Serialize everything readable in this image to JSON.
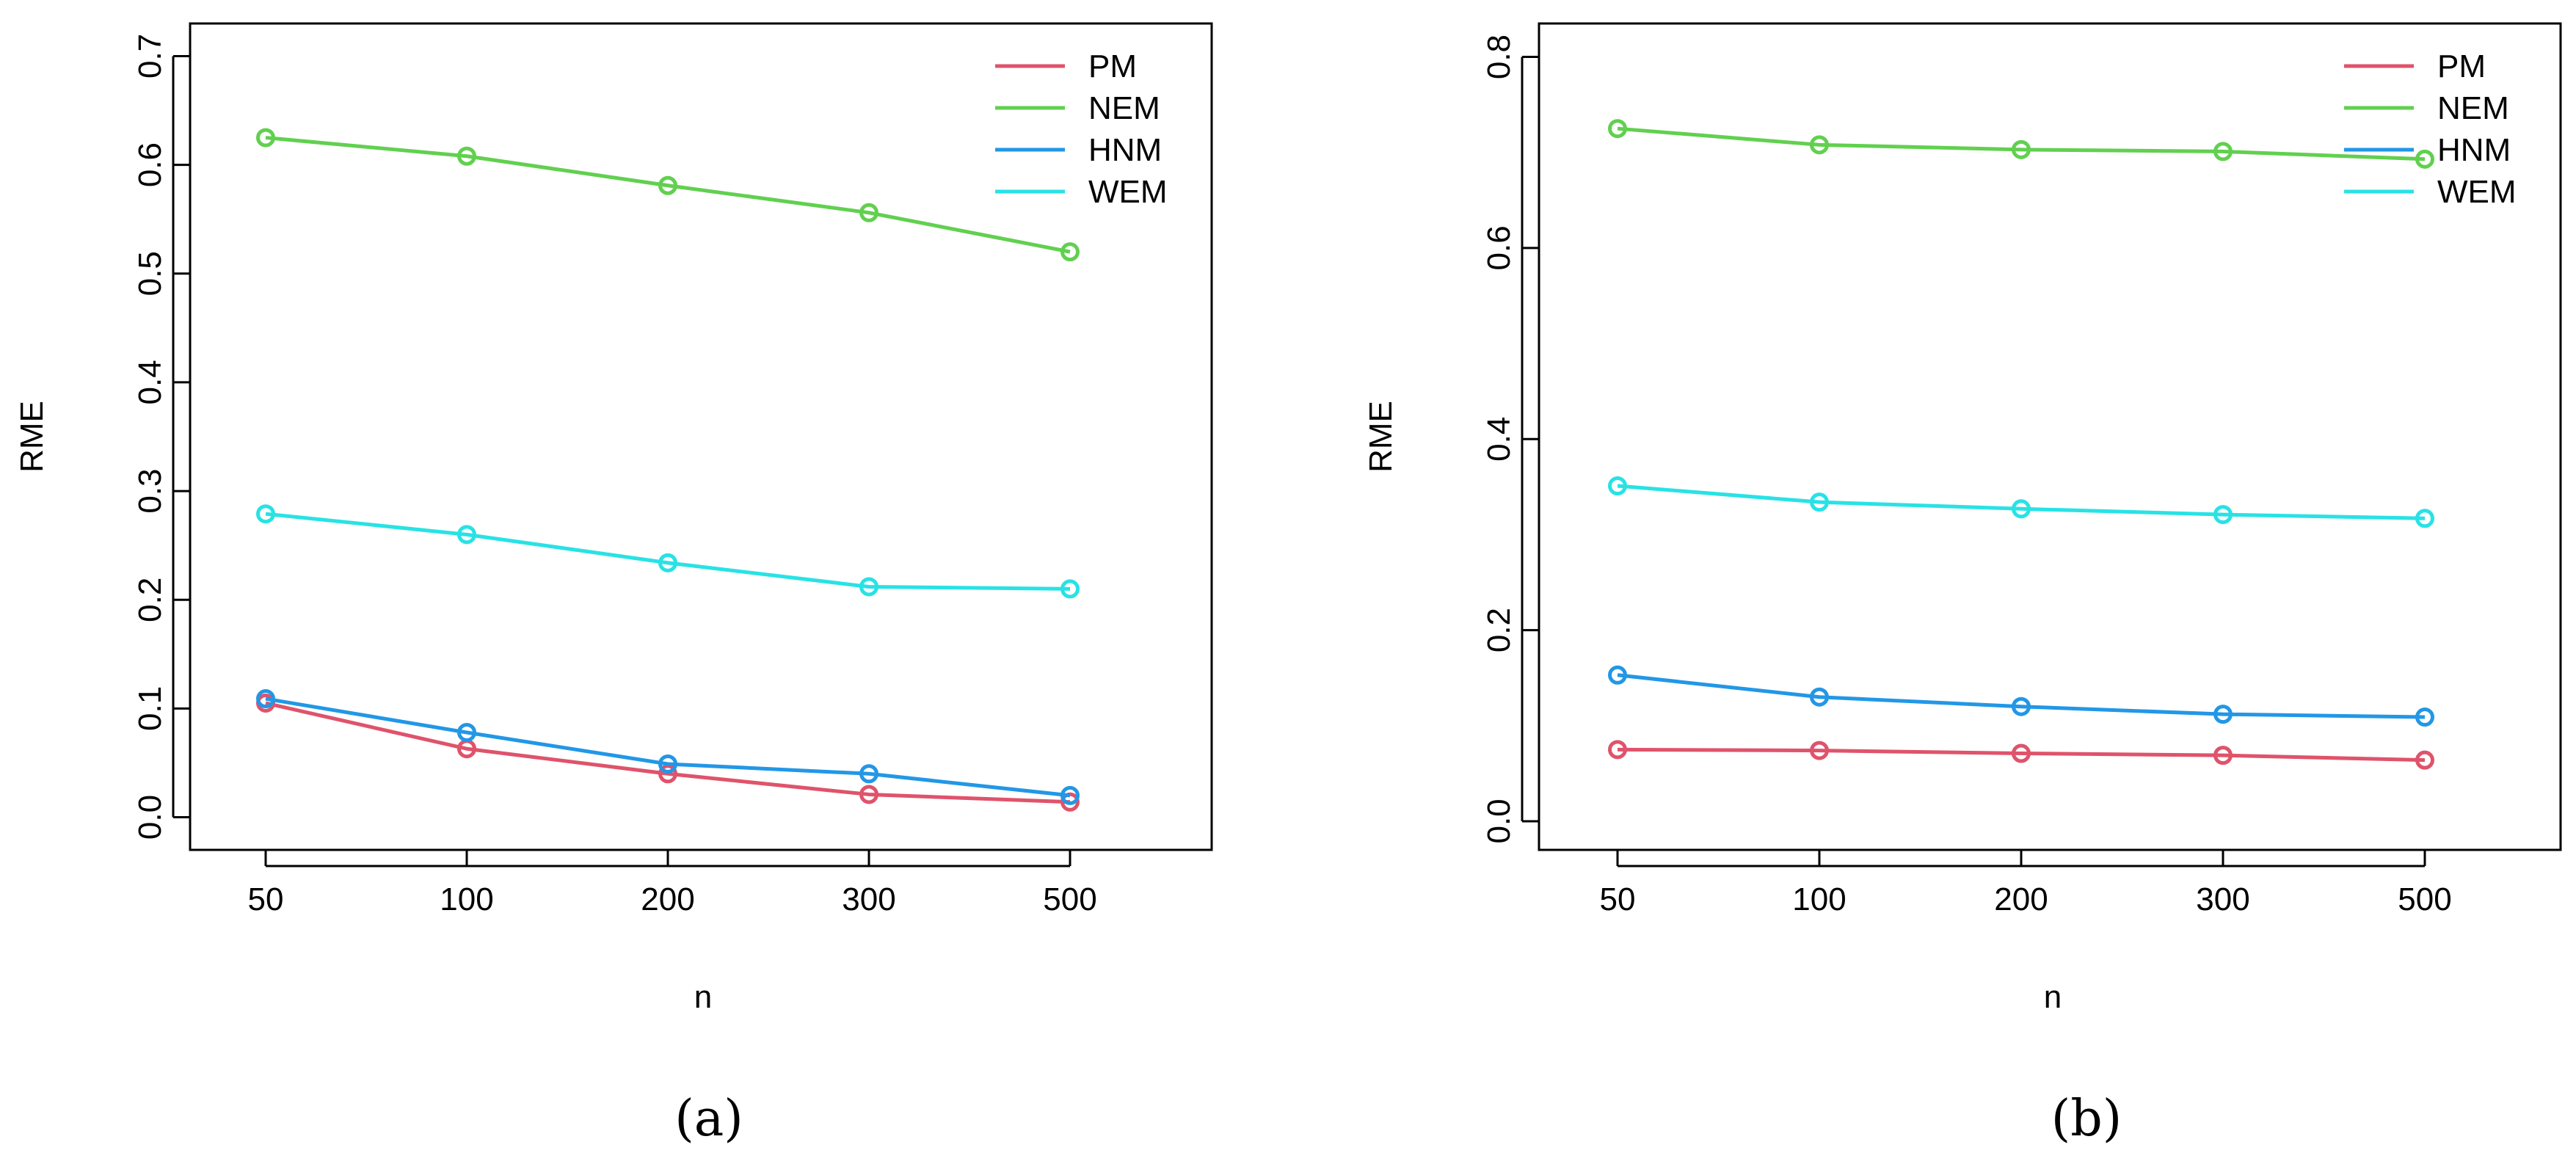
{
  "chart_data": [
    {
      "type": "line",
      "panel_label": "(a)",
      "xlabel": "n",
      "ylabel": "RME",
      "categories": [
        "50",
        "100",
        "200",
        "300",
        "500"
      ],
      "ylim": [
        -0.03,
        0.73
      ],
      "yticks": [
        "0.0",
        "0.1",
        "0.2",
        "0.3",
        "0.4",
        "0.5",
        "0.6",
        "0.7"
      ],
      "legend_position": "top-right",
      "series": [
        {
          "name": "PM",
          "color": "#DF536B",
          "values": [
            0.105,
            0.063,
            0.04,
            0.021,
            0.014
          ]
        },
        {
          "name": "NEM",
          "color": "#61D04F",
          "values": [
            0.625,
            0.608,
            0.581,
            0.556,
            0.52
          ]
        },
        {
          "name": "HNM",
          "color": "#2297E6",
          "values": [
            0.109,
            0.078,
            0.049,
            0.04,
            0.02
          ]
        },
        {
          "name": "WEM",
          "color": "#28E2E5",
          "values": [
            0.279,
            0.26,
            0.234,
            0.212,
            0.21
          ]
        }
      ]
    },
    {
      "type": "line",
      "panel_label": "(b)",
      "xlabel": "n",
      "ylabel": "RME",
      "categories": [
        "50",
        "100",
        "200",
        "300",
        "500"
      ],
      "ylim": [
        -0.03,
        0.835
      ],
      "yticks": [
        "0.0",
        "0.2",
        "0.4",
        "0.6",
        "0.8"
      ],
      "legend_position": "top-right",
      "series": [
        {
          "name": "PM",
          "color": "#DF536B",
          "values": [
            0.075,
            0.074,
            0.071,
            0.069,
            0.064
          ]
        },
        {
          "name": "NEM",
          "color": "#61D04F",
          "values": [
            0.725,
            0.708,
            0.703,
            0.701,
            0.693
          ]
        },
        {
          "name": "HNM",
          "color": "#2297E6",
          "values": [
            0.153,
            0.13,
            0.12,
            0.112,
            0.109
          ]
        },
        {
          "name": "WEM",
          "color": "#28E2E5",
          "values": [
            0.351,
            0.334,
            0.327,
            0.321,
            0.317
          ]
        }
      ]
    }
  ]
}
